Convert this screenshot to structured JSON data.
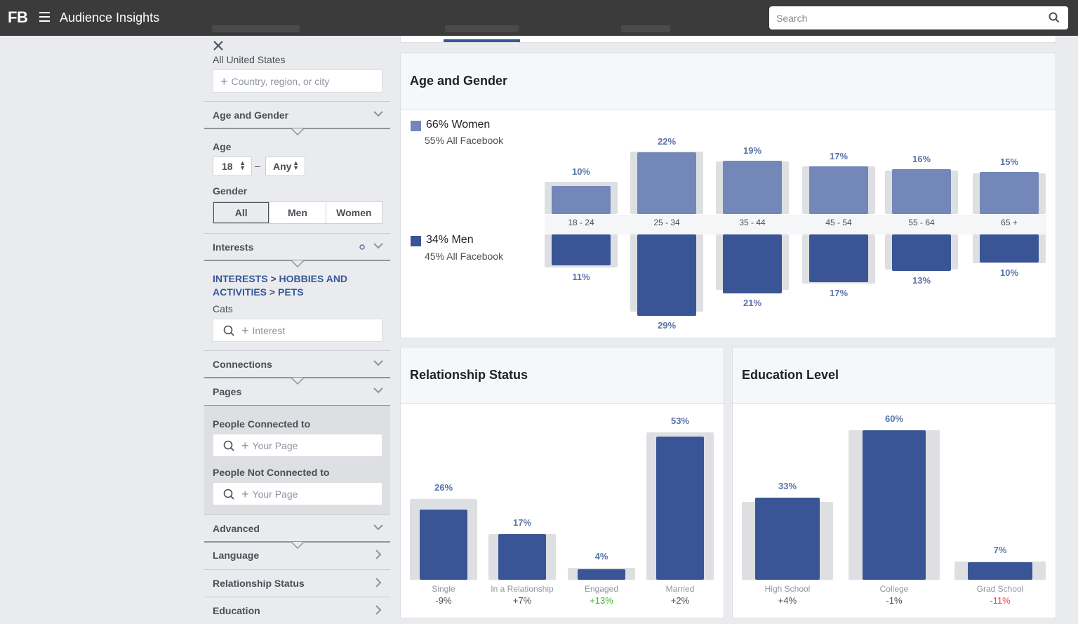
{
  "app": {
    "logo": "FB",
    "title": "Audience Insights"
  },
  "search": {
    "placeholder": "Search"
  },
  "sidebar": {
    "location": {
      "selected": "All United States",
      "placeholder": "Country, region, or city"
    },
    "sections": {
      "age_gender": "Age and Gender",
      "interests": "Interests",
      "connections": "Connections",
      "pages": "Pages",
      "advanced": "Advanced",
      "language": "Language",
      "relationship": "Relationship Status",
      "education": "Education"
    },
    "age": {
      "label": "Age",
      "min": "18",
      "separator": "–",
      "max": "Any"
    },
    "gender": {
      "label": "Gender",
      "options": [
        "All",
        "Men",
        "Women"
      ],
      "selected": "All"
    },
    "interests": {
      "crumb1": "INTERESTS",
      "sep": ">",
      "crumb2": "HOBBIES AND ACTIVITIES",
      "crumb3": "PETS",
      "selected": "Cats",
      "placeholder": "Interest"
    },
    "pages_section": {
      "connected_label": "People Connected to",
      "connected_placeholder": "Your Page",
      "not_connected_label": "People Not Connected to",
      "not_connected_placeholder": "Your Page"
    }
  },
  "colors": {
    "women": "#7387b8",
    "men": "#3a5595",
    "bar_bg": "#dddfe2",
    "positive": "#42b72a",
    "negative": "#fa3e3e"
  },
  "panels": {
    "age_gender": {
      "title": "Age and Gender",
      "women_label": "66% Women",
      "women_sub": "55% All Facebook",
      "men_label": "34% Men",
      "men_sub": "45% All Facebook"
    },
    "relationship": {
      "title": "Relationship Status"
    },
    "education": {
      "title": "Education Level"
    }
  },
  "chart_data": [
    {
      "type": "bar",
      "title": "Age and Gender",
      "categories": [
        "18 - 24",
        "25 - 34",
        "35 - 44",
        "45 - 54",
        "55 - 64",
        "65 +"
      ],
      "series": [
        {
          "name": "66% Women",
          "values": [
            10,
            22,
            19,
            17,
            16,
            15
          ],
          "labels": [
            "10%",
            "22%",
            "19%",
            "17%",
            "16%",
            "15%"
          ]
        },
        {
          "name": "34% Men",
          "values": [
            11,
            29,
            21,
            17,
            13,
            10
          ],
          "labels": [
            "11%",
            "29%",
            "21%",
            "17%",
            "13%",
            "10%"
          ]
        }
      ]
    },
    {
      "type": "bar",
      "title": "Relationship Status",
      "categories": [
        "Single",
        "In a Relationship",
        "Engaged",
        "Married"
      ],
      "values": [
        26,
        17,
        4,
        53
      ],
      "labels": [
        "26%",
        "17%",
        "4%",
        "53%"
      ],
      "diff": [
        "-9%",
        "+7%",
        "+13%",
        "+2%"
      ]
    },
    {
      "type": "bar",
      "title": "Education Level",
      "categories": [
        "High School",
        "College",
        "Grad School"
      ],
      "values": [
        33,
        60,
        7
      ],
      "labels": [
        "33%",
        "60%",
        "7%"
      ],
      "diff": [
        "+4%",
        "-1%",
        "-11%"
      ]
    }
  ]
}
